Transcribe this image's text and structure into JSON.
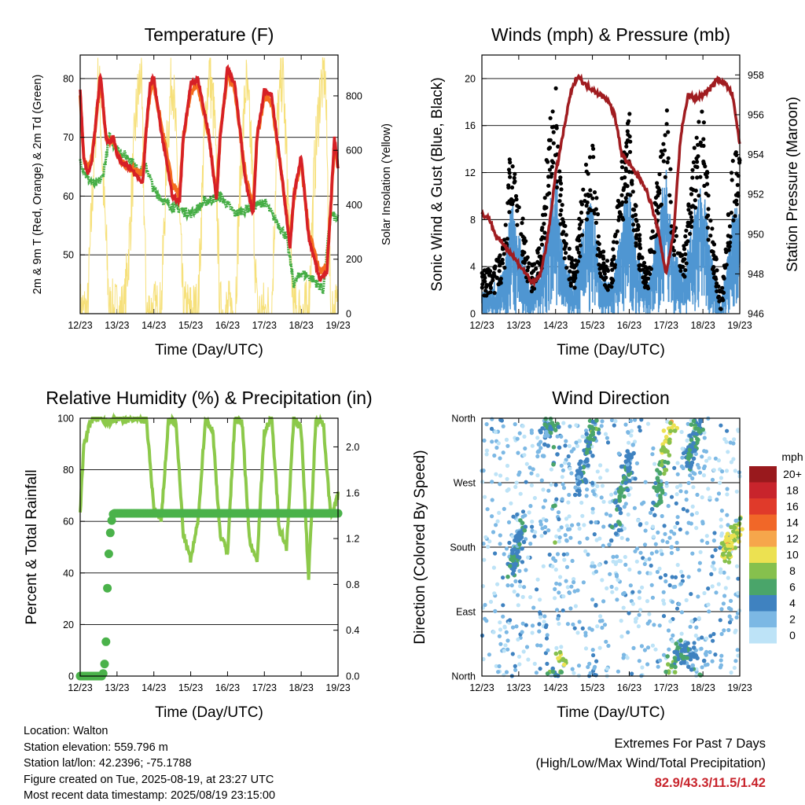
{
  "colors": {
    "temp2m": "#d62026",
    "temp9m": "#f46d1f",
    "dewpoint": "#45ad45",
    "solar": "#f6e07a",
    "wind": "#000000",
    "gust": "#4f96d2",
    "pressure": "#a01c20",
    "rh": "#8cc94a",
    "precip": "#4ab24a",
    "extremes": "#c8242c"
  },
  "chart_data": [
    {
      "type": "line",
      "title": "Temperature (F)",
      "xlabel": "Time (Day/UTC)",
      "ylabel": "2m & 9m T (Red, Orange) & 2m Td (Green)",
      "ylabel_right": "Solar Insolation (Yellow)",
      "x_ticks": [
        "12/23",
        "13/23",
        "14/23",
        "15/23",
        "16/23",
        "17/23",
        "18/23",
        "19/23"
      ],
      "y_ticks": [
        50,
        60,
        70,
        80
      ],
      "y_ticks_right": [
        0,
        200,
        400,
        600,
        800
      ],
      "ylim": [
        40,
        84
      ],
      "ylim_right": [
        0,
        950
      ],
      "grid": true,
      "series": [
        {
          "role": "temp2m",
          "x": [
            0,
            0.1,
            0.2,
            0.3,
            0.4,
            0.55,
            0.7,
            0.8,
            0.9,
            1.0,
            1.1,
            1.3,
            1.5,
            1.7,
            1.8,
            1.9,
            2.0,
            2.2,
            2.5,
            2.7,
            2.8,
            3.0,
            3.2,
            3.5,
            3.7,
            3.8,
            4.0,
            4.2,
            4.5,
            4.7,
            4.8,
            5.0,
            5.2,
            5.5,
            5.7,
            5.8,
            6.0,
            6.2,
            6.5,
            6.7,
            6.8,
            6.9,
            7.0
          ],
          "values": [
            78,
            66,
            64,
            65,
            71,
            81,
            70,
            69,
            70,
            67,
            66,
            65,
            64,
            62,
            72,
            79,
            80,
            71,
            60,
            59,
            70,
            79,
            80,
            70,
            59,
            70,
            82,
            79,
            62,
            57,
            70,
            78,
            77,
            62,
            51,
            60,
            67,
            53,
            46,
            47,
            58,
            70,
            65
          ]
        },
        {
          "role": "temp9m",
          "x": [
            0,
            0.1,
            0.2,
            0.3,
            0.4,
            0.55,
            0.7,
            0.8,
            0.9,
            1.0,
            1.1,
            1.3,
            1.5,
            1.7,
            1.8,
            1.9,
            2.0,
            2.2,
            2.5,
            2.7,
            2.8,
            3.0,
            3.2,
            3.5,
            3.7,
            3.8,
            4.0,
            4.2,
            4.5,
            4.7,
            4.8,
            5.0,
            5.2,
            5.5,
            5.7,
            5.8,
            6.0,
            6.2,
            6.5,
            6.7,
            6.8,
            6.9,
            7.0
          ],
          "values": [
            77,
            66,
            65,
            66,
            71,
            80,
            70,
            69,
            70,
            67,
            66,
            65,
            64,
            64,
            72,
            78,
            79,
            72,
            62,
            60,
            70,
            78,
            79,
            70,
            60,
            70,
            81,
            78,
            63,
            58,
            70,
            77,
            76,
            62,
            52,
            60,
            66,
            54,
            47,
            48,
            58,
            69,
            65
          ]
        },
        {
          "role": "dewpoint",
          "x": [
            0,
            0.2,
            0.4,
            0.6,
            0.8,
            1.0,
            1.2,
            1.4,
            1.6,
            1.8,
            2.0,
            2.3,
            2.6,
            3.0,
            3.4,
            3.8,
            4.2,
            4.6,
            5.0,
            5.3,
            5.6,
            5.8,
            6.0,
            6.3,
            6.6,
            6.8,
            7.0
          ],
          "values": [
            66,
            63,
            62,
            63,
            70,
            68,
            67,
            66,
            64,
            65,
            61,
            59,
            58,
            57,
            59,
            60,
            57,
            58,
            59,
            56,
            53,
            45,
            47,
            46,
            44,
            57,
            56
          ]
        },
        {
          "role": "solar",
          "x": [
            0,
            0.2,
            0.35,
            0.5,
            0.65,
            0.8,
            1.0,
            1.2,
            1.35,
            1.5,
            1.65,
            1.8,
            2.0,
            2.2,
            2.35,
            2.5,
            2.65,
            2.8,
            3.0,
            3.2,
            3.35,
            3.5,
            3.65,
            3.8,
            4.0,
            4.2,
            4.35,
            4.5,
            4.65,
            4.8,
            5.0,
            5.2,
            5.35,
            5.5,
            5.65,
            5.8,
            6.0,
            6.2,
            6.35,
            6.5,
            6.65,
            6.8,
            7.0
          ],
          "values": [
            0,
            0,
            500,
            900,
            400,
            0,
            0,
            0,
            300,
            700,
            900,
            0,
            0,
            0,
            600,
            900,
            500,
            0,
            0,
            0,
            600,
            900,
            700,
            0,
            0,
            0,
            500,
            850,
            600,
            0,
            0,
            0,
            700,
            900,
            400,
            0,
            0,
            0,
            500,
            800,
            900,
            0,
            0
          ]
        }
      ]
    },
    {
      "type": "scatter",
      "title": "Winds (mph) & Pressure (mb)",
      "xlabel": "Time (Day/UTC)",
      "ylabel": "Sonic Wind & Gust (Blue, Black)",
      "ylabel_right": "Station Pressure (Maroon)",
      "x_ticks": [
        "12/23",
        "13/23",
        "14/23",
        "15/23",
        "16/23",
        "17/23",
        "18/23",
        "19/23"
      ],
      "y_ticks": [
        0,
        4,
        8,
        12,
        16,
        20
      ],
      "y_ticks_right": [
        946,
        948,
        950,
        952,
        954,
        956,
        958
      ],
      "ylim": [
        0,
        22
      ],
      "ylim_right": [
        946,
        959
      ],
      "grid": true,
      "series": [
        {
          "role": "pressure",
          "x": [
            0,
            0.2,
            0.4,
            0.6,
            0.8,
            1.0,
            1.2,
            1.4,
            1.6,
            1.8,
            2.0,
            2.2,
            2.4,
            2.6,
            2.8,
            3.0,
            3.2,
            3.4,
            3.6,
            3.8,
            4.0,
            4.2,
            4.4,
            4.6,
            4.8,
            5.0,
            5.2,
            5.4,
            5.6,
            5.8,
            6.0,
            6.2,
            6.4,
            6.6,
            6.8,
            7.0
          ],
          "values": [
            951,
            950.8,
            949.8,
            949.5,
            949,
            948.5,
            948,
            947.5,
            948,
            950,
            953,
            955,
            957,
            958,
            957.5,
            957.3,
            957,
            956.8,
            956,
            954,
            953.5,
            953,
            952.5,
            951.5,
            950,
            948,
            950,
            955,
            957,
            956.8,
            957,
            957.3,
            957.8,
            957.6,
            957,
            954.5
          ]
        },
        {
          "role": "wind_avg",
          "x": [
            0,
            0.3,
            0.6,
            0.8,
            1.0,
            1.3,
            1.6,
            1.8,
            2.0,
            2.2,
            2.5,
            2.8,
            3.0,
            3.2,
            3.5,
            3.8,
            4.0,
            4.2,
            4.5,
            4.8,
            5.0,
            5.2,
            5.5,
            5.8,
            6.0,
            6.2,
            6.5,
            6.8,
            7.0
          ],
          "values": [
            1,
            1,
            2,
            6,
            4,
            1,
            2,
            6,
            8,
            3,
            1,
            5,
            6,
            2,
            1,
            5,
            7,
            3,
            1,
            5,
            8,
            3,
            2,
            6,
            7,
            3,
            0,
            5,
            6
          ]
        }
      ]
    },
    {
      "type": "line",
      "title": "Relative Humidity (%) & Precipitation (in)",
      "xlabel": "Time (Day/UTC)",
      "ylabel": "Percent & Total Rainfall",
      "x_ticks": [
        "12/23",
        "13/23",
        "14/23",
        "15/23",
        "16/23",
        "17/23",
        "18/23",
        "19/23"
      ],
      "y_ticks": [
        0,
        20,
        40,
        60,
        80,
        100
      ],
      "y_ticks_right": [
        "0.0",
        "0.4",
        "0.8",
        "1.2",
        "1.6",
        "2.0"
      ],
      "ylim": [
        0,
        100
      ],
      "ylim_right": [
        0,
        2.25
      ],
      "grid": true,
      "series": [
        {
          "role": "rh",
          "x": [
            0,
            0.1,
            0.2,
            0.35,
            0.5,
            0.7,
            0.9,
            1.0,
            1.2,
            1.4,
            1.6,
            1.8,
            2.0,
            2.2,
            2.4,
            2.6,
            2.8,
            3.0,
            3.2,
            3.4,
            3.6,
            3.8,
            4.0,
            4.2,
            4.4,
            4.6,
            4.8,
            5.0,
            5.2,
            5.4,
            5.6,
            5.8,
            6.0,
            6.2,
            6.4,
            6.6,
            6.8,
            7.0
          ],
          "values": [
            64,
            90,
            95,
            100,
            100,
            98,
            99,
            100,
            99,
            100,
            100,
            99,
            65,
            60,
            100,
            98,
            55,
            45,
            60,
            100,
            95,
            55,
            48,
            100,
            98,
            52,
            45,
            95,
            100,
            58,
            50,
            100,
            96,
            38,
            100,
            98,
            62,
            70
          ]
        },
        {
          "role": "precip",
          "x": [
            0,
            0.2,
            0.4,
            0.6,
            0.65,
            0.7,
            0.75,
            0.8,
            0.85,
            0.9,
            1.0,
            1.5,
            2.0,
            3.0,
            4.0,
            5.0,
            6.0,
            7.0
          ],
          "values": [
            0,
            0,
            0,
            0,
            0.05,
            0.3,
            0.9,
            1.2,
            1.35,
            1.42,
            1.42,
            1.42,
            1.42,
            1.42,
            1.42,
            1.42,
            1.42,
            1.42
          ]
        }
      ]
    },
    {
      "type": "scatter",
      "title": "Wind Direction",
      "xlabel": "Time (Day/UTC)",
      "ylabel": "Direction (Colored By Speed)",
      "x_ticks": [
        "12/23",
        "13/23",
        "14/23",
        "15/23",
        "16/23",
        "17/23",
        "18/23",
        "19/23"
      ],
      "y_ticks": [
        "North",
        "East",
        "South",
        "West",
        "North"
      ],
      "legend_title": "mph",
      "legend_labels": [
        "20+",
        "18",
        "16",
        "14",
        "12",
        "10",
        "8",
        "6",
        "4",
        "2",
        "0"
      ],
      "legend_colors": [
        "#99191d",
        "#c8242c",
        "#e03a2a",
        "#f16728",
        "#f6a64b",
        "#ece151",
        "#86c04d",
        "#4aa56a",
        "#3f82c0",
        "#7cb8e4",
        "#bde3f7"
      ],
      "legend_position": "right",
      "series": [
        {
          "role": "direction_band",
          "x": [
            0.8,
            0.85,
            0.9,
            0.95,
            1.0,
            1.05,
            1.1
          ],
          "values": [
            150,
            160,
            170,
            180,
            190,
            200,
            210
          ],
          "speed": [
            5,
            4,
            6,
            3,
            4,
            5,
            4
          ]
        },
        {
          "role": "direction_band",
          "x": [
            1.6,
            1.7,
            1.8,
            1.9,
            2.0,
            2.1,
            2.2
          ],
          "values": [
            320,
            335,
            345,
            355,
            360,
            10,
            20
          ],
          "speed": [
            3,
            4,
            5,
            6,
            5,
            8,
            9
          ]
        },
        {
          "role": "direction_band",
          "x": [
            2.6,
            2.7,
            2.8,
            2.9,
            3.0,
            3.1
          ],
          "values": [
            260,
            280,
            300,
            320,
            340,
            355
          ],
          "speed": [
            3,
            4,
            5,
            4,
            6,
            5
          ]
        },
        {
          "role": "direction_band",
          "x": [
            3.6,
            3.7,
            3.8,
            3.9,
            4.0,
            4.1
          ],
          "values": [
            200,
            230,
            260,
            280,
            300,
            320
          ],
          "speed": [
            4,
            5,
            6,
            5,
            4,
            3
          ]
        },
        {
          "role": "direction_band",
          "x": [
            4.7,
            4.8,
            4.9,
            5.0,
            5.1,
            5.2
          ],
          "values": [
            230,
            260,
            290,
            320,
            345,
            360
          ],
          "speed": [
            4,
            6,
            7,
            8,
            9,
            10
          ]
        },
        {
          "role": "direction_band",
          "x": [
            5.0,
            5.2,
            5.4,
            5.6,
            5.8,
            6.0
          ],
          "values": [
            10,
            20,
            40,
            30,
            20,
            10
          ],
          "speed": [
            8,
            6,
            5,
            4,
            4,
            5
          ]
        },
        {
          "role": "direction_band",
          "x": [
            5.6,
            5.7,
            5.8,
            5.9
          ],
          "values": [
            300,
            320,
            340,
            355
          ],
          "speed": [
            4,
            5,
            6,
            5
          ]
        },
        {
          "role": "direction_band",
          "x": [
            6.6,
            6.7,
            6.8,
            6.9,
            7.0
          ],
          "values": [
            170,
            180,
            190,
            200,
            210
          ],
          "speed": [
            8,
            9,
            10,
            9,
            8
          ]
        }
      ]
    }
  ],
  "info": {
    "location": "Location: Walton",
    "elevation": "Station elevation: 559.796 m",
    "latlon": "Station lat/lon: 42.2396; -75.1788",
    "created": "Figure created on Tue, 2025-08-19, at 23:27 UTC",
    "recent": "Most recent data timestamp: 2025/08/19 23:15:00"
  },
  "extremes": {
    "title": "Extremes For Past 7 Days",
    "subtitle": "(High/Low/Max Wind/Total Precipitation)",
    "values": "82.9/43.3/11.5/1.42"
  }
}
